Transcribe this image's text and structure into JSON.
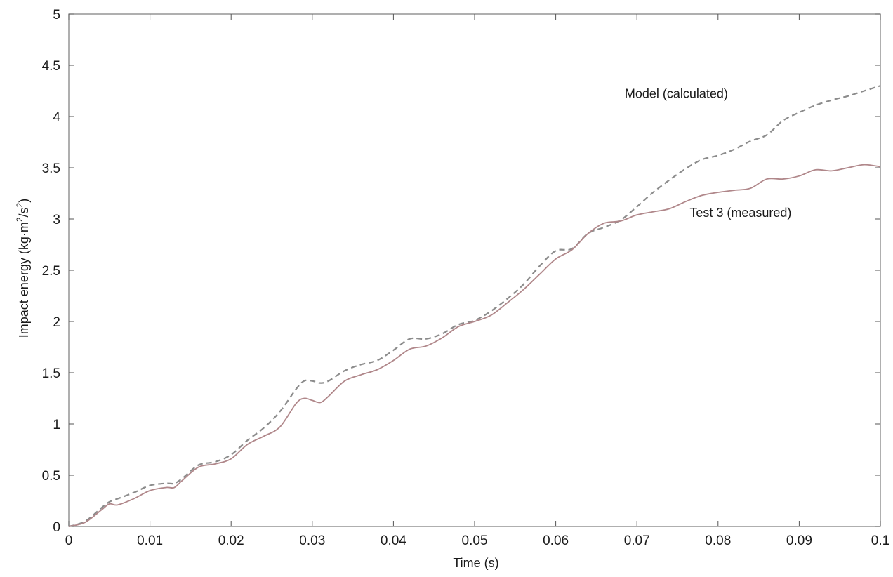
{
  "chart_data": {
    "type": "line",
    "xlabel": "Time (s)",
    "ylabel": "Impact energy (kg·m",
    "ylabel_sup1": "2",
    "ylabel_mid": "/s",
    "ylabel_sup2": "2",
    "ylabel_end": ")",
    "xlim": [
      0,
      0.1
    ],
    "ylim": [
      0,
      5
    ],
    "x_ticks": [
      "0",
      "0.01",
      "0.02",
      "0.03",
      "0.04",
      "0.05",
      "0.06",
      "0.07",
      "0.08",
      "0.09",
      "0.1"
    ],
    "y_ticks": [
      "0",
      "0.5",
      "1",
      "1.5",
      "2",
      "2.5",
      "3",
      "3.5",
      "4",
      "4.5",
      "5"
    ],
    "grid": false,
    "series": [
      {
        "name": "Model (calculated)",
        "style": "dashed",
        "color": "#8c8c8c",
        "x": [
          0,
          0.002,
          0.004,
          0.005,
          0.006,
          0.008,
          0.01,
          0.012,
          0.013,
          0.014,
          0.016,
          0.018,
          0.02,
          0.022,
          0.024,
          0.026,
          0.028,
          0.029,
          0.03,
          0.031,
          0.032,
          0.034,
          0.036,
          0.038,
          0.04,
          0.042,
          0.044,
          0.046,
          0.048,
          0.05,
          0.052,
          0.054,
          0.056,
          0.058,
          0.06,
          0.062,
          0.064,
          0.066,
          0.068,
          0.07,
          0.072,
          0.074,
          0.076,
          0.078,
          0.08,
          0.082,
          0.084,
          0.086,
          0.088,
          0.09,
          0.092,
          0.094,
          0.096,
          0.098,
          0.1
        ],
        "y": [
          0,
          0.05,
          0.18,
          0.24,
          0.27,
          0.33,
          0.4,
          0.42,
          0.42,
          0.47,
          0.6,
          0.63,
          0.7,
          0.84,
          0.96,
          1.12,
          1.34,
          1.42,
          1.42,
          1.4,
          1.42,
          1.52,
          1.58,
          1.62,
          1.72,
          1.83,
          1.83,
          1.88,
          1.97,
          2.01,
          2.1,
          2.22,
          2.36,
          2.54,
          2.69,
          2.71,
          2.86,
          2.92,
          2.99,
          3.12,
          3.26,
          3.38,
          3.49,
          3.58,
          3.62,
          3.68,
          3.76,
          3.82,
          3.96,
          4.04,
          4.11,
          4.16,
          4.2,
          4.25,
          4.3
        ]
      },
      {
        "name": "Test 3 (measured)",
        "style": "solid",
        "color": "#b0878a",
        "x": [
          0,
          0.002,
          0.004,
          0.005,
          0.006,
          0.008,
          0.01,
          0.012,
          0.013,
          0.014,
          0.016,
          0.018,
          0.02,
          0.022,
          0.024,
          0.026,
          0.028,
          0.029,
          0.03,
          0.031,
          0.032,
          0.034,
          0.036,
          0.038,
          0.04,
          0.042,
          0.044,
          0.046,
          0.048,
          0.05,
          0.052,
          0.054,
          0.056,
          0.058,
          0.06,
          0.062,
          0.064,
          0.066,
          0.068,
          0.07,
          0.072,
          0.074,
          0.076,
          0.078,
          0.08,
          0.082,
          0.084,
          0.086,
          0.088,
          0.09,
          0.092,
          0.094,
          0.096,
          0.098,
          0.1
        ],
        "y": [
          0,
          0.04,
          0.16,
          0.22,
          0.21,
          0.27,
          0.35,
          0.38,
          0.38,
          0.45,
          0.58,
          0.61,
          0.66,
          0.8,
          0.88,
          0.97,
          1.2,
          1.25,
          1.23,
          1.21,
          1.27,
          1.42,
          1.48,
          1.53,
          1.62,
          1.73,
          1.76,
          1.84,
          1.95,
          2.0,
          2.06,
          2.18,
          2.31,
          2.46,
          2.61,
          2.7,
          2.86,
          2.96,
          2.98,
          3.04,
          3.07,
          3.1,
          3.17,
          3.23,
          3.26,
          3.28,
          3.3,
          3.39,
          3.39,
          3.42,
          3.48,
          3.47,
          3.5,
          3.53,
          3.51
        ]
      }
    ],
    "annotations": [
      {
        "text": "Model (calculated)",
        "x": 0.0685,
        "y": 4.18
      },
      {
        "text": "Test 3 (measured)",
        "x": 0.0765,
        "y": 3.02
      }
    ]
  }
}
